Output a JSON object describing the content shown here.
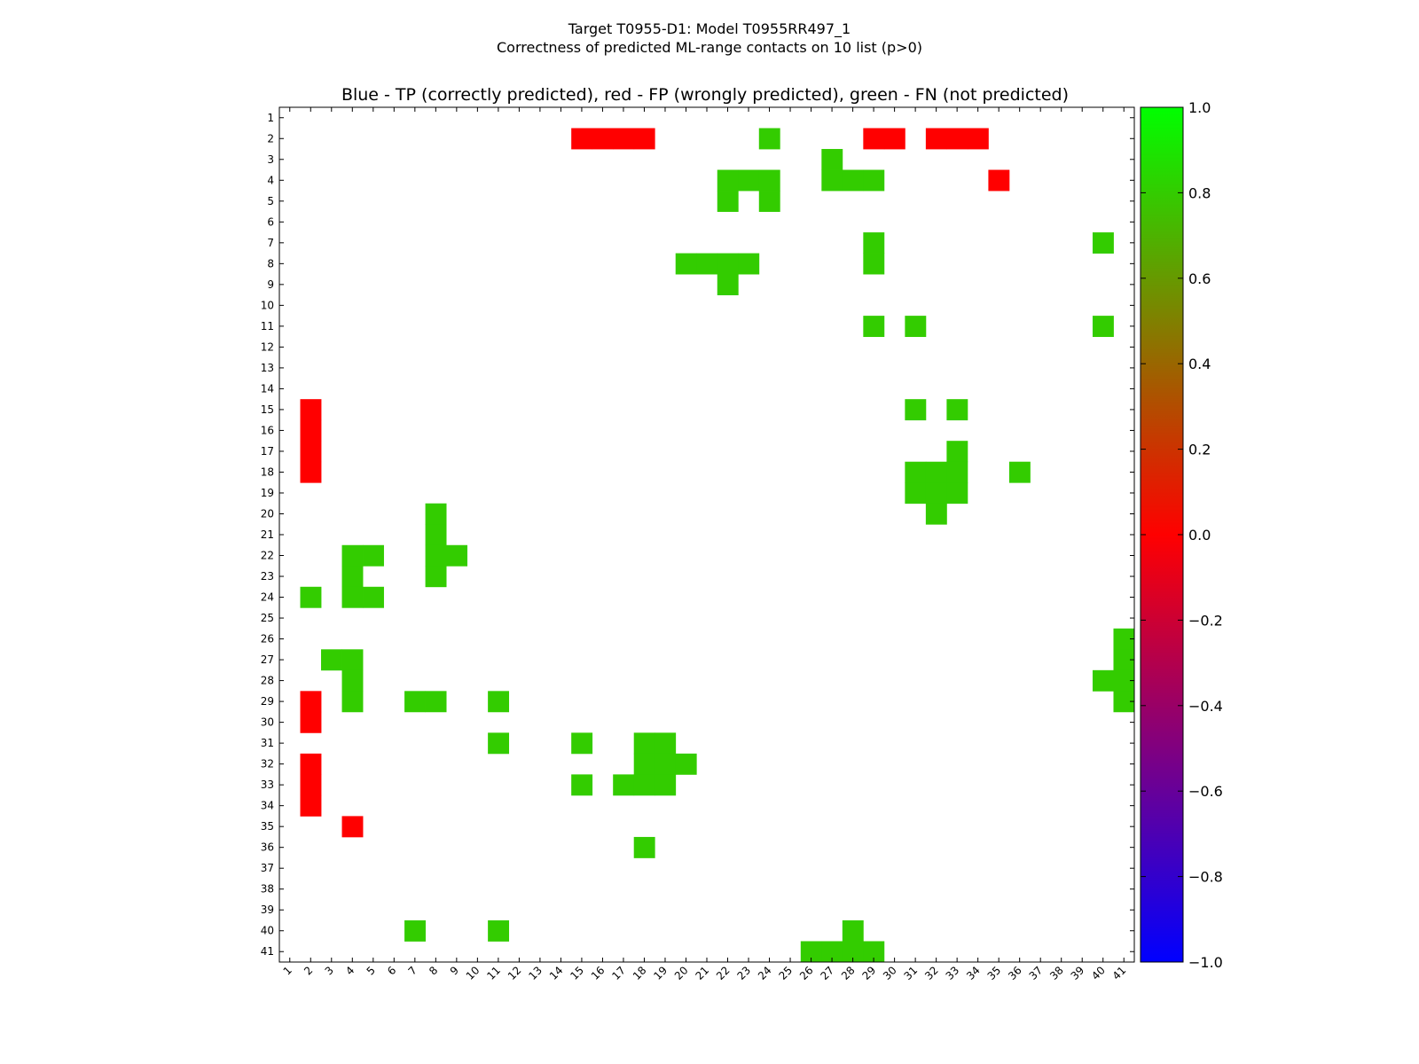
{
  "chart_data": {
    "type": "heatmap",
    "suptitle_line1": "Target T0955-D1: Model T0955RR497_1",
    "suptitle_line2": "Correctness of predicted ML-range contacts on 10 list (p>0)",
    "title": "Blue - TP (correctly predicted), red - FP (wrongly predicted), green - FN (not predicted)",
    "xlabel": "",
    "ylabel": "",
    "n": 41,
    "x_ticks": [
      "1",
      "2",
      "3",
      "4",
      "5",
      "6",
      "7",
      "8",
      "9",
      "10",
      "11",
      "12",
      "13",
      "14",
      "15",
      "16",
      "17",
      "18",
      "19",
      "20",
      "21",
      "22",
      "23",
      "24",
      "25",
      "26",
      "27",
      "28",
      "29",
      "30",
      "31",
      "32",
      "33",
      "34",
      "35",
      "36",
      "37",
      "38",
      "39",
      "40",
      "41"
    ],
    "y_ticks": [
      "1",
      "2",
      "3",
      "4",
      "5",
      "6",
      "7",
      "8",
      "9",
      "10",
      "11",
      "12",
      "13",
      "14",
      "15",
      "16",
      "17",
      "18",
      "19",
      "20",
      "21",
      "22",
      "23",
      "24",
      "25",
      "26",
      "27",
      "28",
      "29",
      "30",
      "31",
      "32",
      "33",
      "34",
      "35",
      "36",
      "37",
      "38",
      "39",
      "40",
      "41"
    ],
    "colorbar": {
      "min": -1.0,
      "max": 1.0,
      "ticks": [
        "1.0",
        "0.8",
        "0.6",
        "0.4",
        "0.2",
        "0.0",
        "−0.2",
        "−0.4",
        "−0.6",
        "−0.8",
        "−1.0"
      ],
      "tick_values": [
        1.0,
        0.8,
        0.6,
        0.4,
        0.2,
        0.0,
        -0.2,
        -0.4,
        -0.6,
        -0.8,
        -1.0
      ],
      "colors": [
        "#0000ff",
        "#800080",
        "#ff0000",
        "#00ff00"
      ]
    },
    "grid": false,
    "legend": "none",
    "colors": {
      "fp": "#ff0000",
      "fn": "#33cc00"
    },
    "fp_cells": [
      [
        2,
        15
      ],
      [
        2,
        16
      ],
      [
        2,
        17
      ],
      [
        2,
        18
      ],
      [
        2,
        29
      ],
      [
        2,
        30
      ],
      [
        2,
        32
      ],
      [
        2,
        33
      ],
      [
        2,
        34
      ],
      [
        4,
        35
      ],
      [
        15,
        2
      ],
      [
        16,
        2
      ],
      [
        17,
        2
      ],
      [
        18,
        2
      ],
      [
        29,
        2
      ],
      [
        30,
        2
      ],
      [
        32,
        2
      ],
      [
        33,
        2
      ],
      [
        34,
        2
      ],
      [
        35,
        4
      ]
    ],
    "fn_cells": [
      [
        2,
        24
      ],
      [
        3,
        27
      ],
      [
        4,
        22
      ],
      [
        4,
        23
      ],
      [
        4,
        24
      ],
      [
        4,
        27
      ],
      [
        4,
        28
      ],
      [
        4,
        29
      ],
      [
        5,
        22
      ],
      [
        5,
        24
      ],
      [
        7,
        29
      ],
      [
        7,
        40
      ],
      [
        8,
        20
      ],
      [
        8,
        21
      ],
      [
        8,
        22
      ],
      [
        8,
        23
      ],
      [
        8,
        29
      ],
      [
        9,
        22
      ],
      [
        11,
        29
      ],
      [
        11,
        31
      ],
      [
        11,
        40
      ],
      [
        15,
        31
      ],
      [
        15,
        33
      ],
      [
        17,
        33
      ],
      [
        18,
        31
      ],
      [
        18,
        32
      ],
      [
        18,
        33
      ],
      [
        18,
        36
      ],
      [
        19,
        31
      ],
      [
        19,
        32
      ],
      [
        19,
        33
      ],
      [
        20,
        8
      ],
      [
        20,
        32
      ],
      [
        21,
        8
      ],
      [
        22,
        4
      ],
      [
        22,
        5
      ],
      [
        22,
        8
      ],
      [
        22,
        9
      ],
      [
        23,
        4
      ],
      [
        23,
        8
      ],
      [
        24,
        2
      ],
      [
        24,
        4
      ],
      [
        24,
        5
      ],
      [
        26,
        41
      ],
      [
        27,
        3
      ],
      [
        27,
        4
      ],
      [
        27,
        41
      ],
      [
        28,
        4
      ],
      [
        28,
        40
      ],
      [
        28,
        41
      ],
      [
        29,
        4
      ],
      [
        29,
        7
      ],
      [
        29,
        8
      ],
      [
        29,
        11
      ],
      [
        29,
        41
      ],
      [
        31,
        11
      ],
      [
        31,
        15
      ],
      [
        31,
        18
      ],
      [
        31,
        19
      ],
      [
        32,
        18
      ],
      [
        32,
        19
      ],
      [
        32,
        20
      ],
      [
        33,
        15
      ],
      [
        33,
        17
      ],
      [
        33,
        18
      ],
      [
        33,
        19
      ],
      [
        36,
        18
      ],
      [
        40,
        7
      ],
      [
        40,
        11
      ],
      [
        40,
        28
      ],
      [
        41,
        26
      ],
      [
        41,
        27
      ],
      [
        41,
        28
      ],
      [
        41,
        29
      ]
    ]
  }
}
